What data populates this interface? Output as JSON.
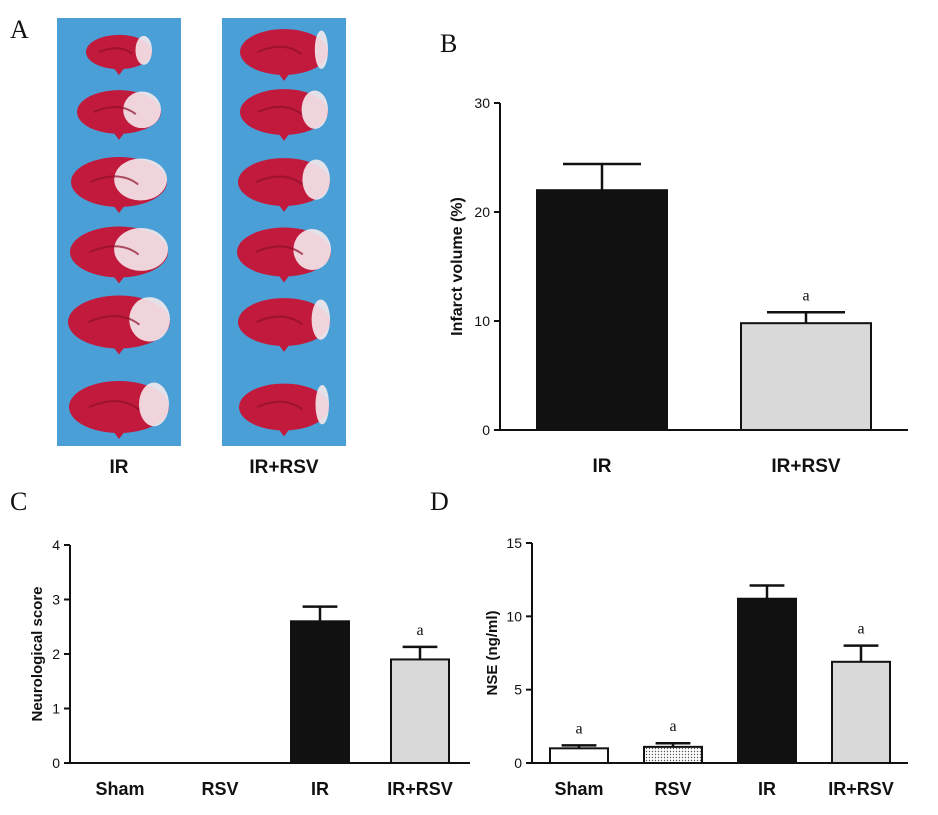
{
  "panel_labels": [
    "A",
    "B",
    "C",
    "D"
  ],
  "colors": {
    "bar_dark": "#111111",
    "bar_light": "#d9d9d9",
    "bar_white": "#ffffff",
    "photo_bg": "#4a9fd6",
    "tissue_red": "#c21a3c",
    "tissue_dark": "#8e0f2a",
    "infarct_white": "#f4e9ec"
  },
  "photo_panel": {
    "columns": [
      "IR",
      "IR+RSV"
    ],
    "slices_per_column": 6
  },
  "chart_data": [
    {
      "panel": "B",
      "type": "bar",
      "categories": [
        "IR",
        "IR+RSV"
      ],
      "values": [
        22,
        9.8
      ],
      "errors": [
        2.4,
        1.0
      ],
      "fills": [
        "dark",
        "light"
      ],
      "significance": [
        "",
        "a"
      ],
      "ylabel": "Infarct volume (%)",
      "ylim": [
        0,
        30
      ],
      "yticks": [
        0,
        10,
        20,
        30
      ]
    },
    {
      "panel": "C",
      "type": "bar",
      "categories": [
        "Sham",
        "RSV",
        "IR",
        "IR+RSV"
      ],
      "values": [
        0,
        0,
        2.6,
        1.9
      ],
      "errors": [
        0,
        0,
        0.27,
        0.23
      ],
      "fills": [
        "white",
        "dotted",
        "dark",
        "light"
      ],
      "significance": [
        "",
        "",
        "",
        "a"
      ],
      "ylabel": "Neurological score",
      "ylim": [
        0,
        4
      ],
      "yticks": [
        0,
        1,
        2,
        3,
        4
      ]
    },
    {
      "panel": "D",
      "type": "bar",
      "categories": [
        "Sham",
        "RSV",
        "IR",
        "IR+RSV"
      ],
      "values": [
        1.0,
        1.1,
        11.2,
        6.9
      ],
      "errors": [
        0.2,
        0.25,
        0.9,
        1.1
      ],
      "fills": [
        "white",
        "dotted",
        "dark",
        "light"
      ],
      "significance": [
        "a",
        "a",
        "",
        "a"
      ],
      "ylabel": "NSE (ng/ml)",
      "ylim": [
        0,
        15
      ],
      "yticks": [
        0,
        5,
        10,
        15
      ]
    }
  ]
}
